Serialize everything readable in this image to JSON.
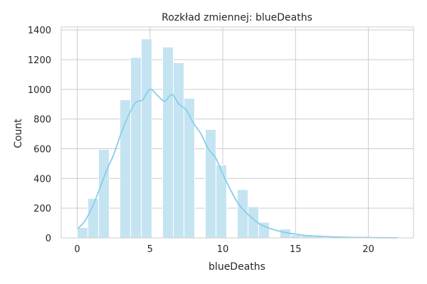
{
  "chart_data": {
    "type": "bar",
    "title": "Rozkład zmiennej: blueDeaths",
    "xlabel": "blueDeaths",
    "ylabel": "Count",
    "xlim": [
      -1.1,
      23.1
    ],
    "ylim": [
      0,
      1420
    ],
    "xticks": [
      0,
      5,
      10,
      15,
      20
    ],
    "yticks": [
      0,
      200,
      400,
      600,
      800,
      1000,
      1200,
      1400
    ],
    "grid": true,
    "bin_width": 0.733,
    "bins": [
      {
        "x0": 0.0,
        "count": 70
      },
      {
        "x0": 0.733,
        "count": 265
      },
      {
        "x0": 1.467,
        "count": 595
      },
      {
        "x0": 2.2,
        "count": 0
      },
      {
        "x0": 2.933,
        "count": 930
      },
      {
        "x0": 3.667,
        "count": 1215
      },
      {
        "x0": 4.4,
        "count": 1340
      },
      {
        "x0": 5.133,
        "count": 0
      },
      {
        "x0": 5.867,
        "count": 1285
      },
      {
        "x0": 6.6,
        "count": 1180
      },
      {
        "x0": 7.333,
        "count": 940
      },
      {
        "x0": 8.067,
        "count": 0
      },
      {
        "x0": 8.8,
        "count": 730
      },
      {
        "x0": 9.533,
        "count": 490
      },
      {
        "x0": 10.267,
        "count": 0
      },
      {
        "x0": 11.0,
        "count": 325
      },
      {
        "x0": 11.733,
        "count": 210
      },
      {
        "x0": 12.467,
        "count": 105
      },
      {
        "x0": 13.2,
        "count": 0
      },
      {
        "x0": 13.933,
        "count": 60
      },
      {
        "x0": 14.667,
        "count": 20
      },
      {
        "x0": 15.4,
        "count": 20
      },
      {
        "x0": 16.133,
        "count": 10
      },
      {
        "x0": 16.867,
        "count": 5
      },
      {
        "x0": 17.6,
        "count": 3
      },
      {
        "x0": 18.333,
        "count": 2
      },
      {
        "x0": 19.067,
        "count": 1
      },
      {
        "x0": 19.8,
        "count": 1
      },
      {
        "x0": 20.533,
        "count": 1
      },
      {
        "x0": 21.267,
        "count": 1
      }
    ],
    "kde": {
      "x": [
        0,
        0.5,
        1,
        1.5,
        2,
        2.5,
        3,
        3.5,
        4,
        4.5,
        5,
        5.5,
        6,
        6.5,
        7,
        7.5,
        8,
        8.5,
        9,
        9.5,
        10,
        10.5,
        11,
        11.5,
        12,
        12.5,
        13,
        13.5,
        14,
        14.5,
        15,
        15.5,
        16,
        17,
        18,
        19,
        20,
        21,
        22
      ],
      "y": [
        60,
        110,
        200,
        320,
        450,
        560,
        700,
        820,
        910,
        930,
        1000,
        960,
        920,
        965,
        900,
        860,
        770,
        700,
        600,
        540,
        430,
        330,
        240,
        180,
        135,
        95,
        72,
        55,
        42,
        32,
        25,
        18,
        14,
        9,
        5,
        3,
        2,
        1,
        0
      ]
    },
    "colors": {
      "bar_fill": "#c5e4f2",
      "kde_line": "#87ceeb",
      "grid": "#cccccc",
      "frame": "#cccccc"
    }
  }
}
